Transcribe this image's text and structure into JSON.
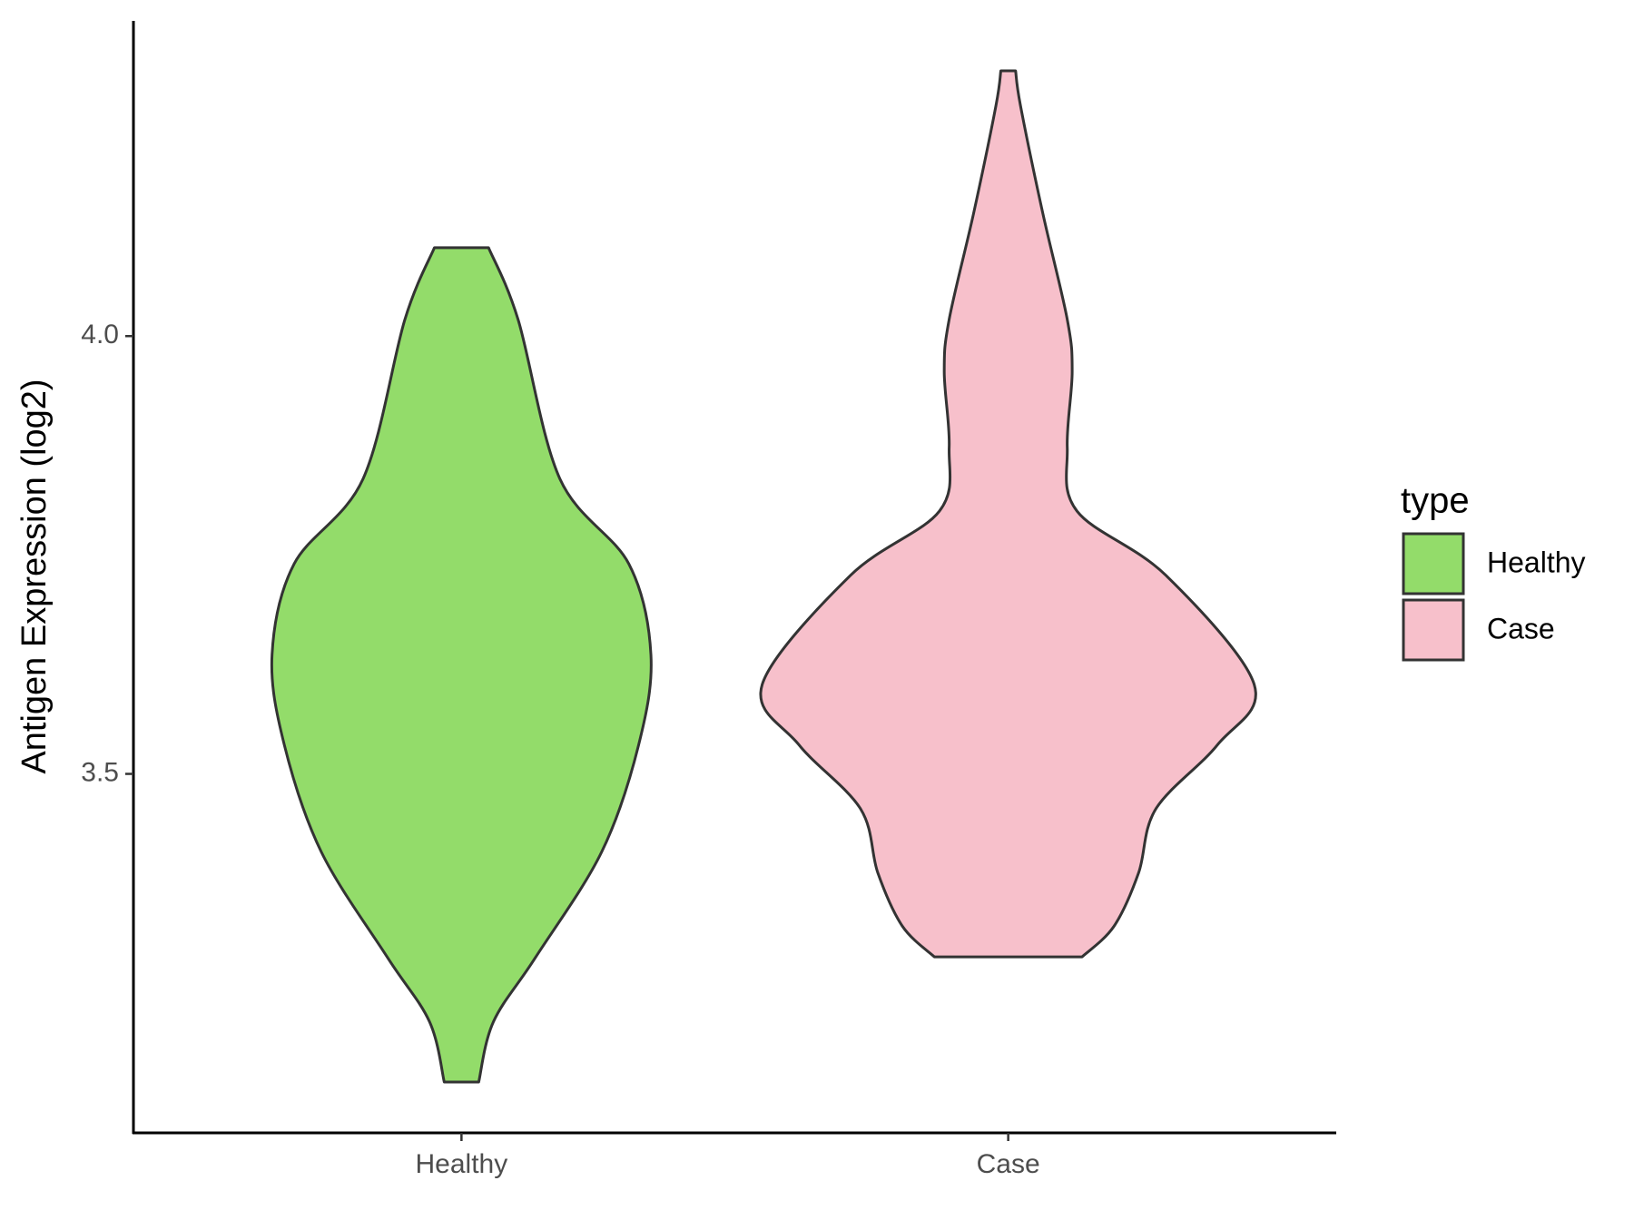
{
  "chart_data": {
    "type": "violin",
    "categories": [
      "Healthy",
      "Case"
    ],
    "y_label": "Antigen Expression (log2)",
    "ylim": [
      3.09,
      4.36
    ],
    "yticks": [
      3.5,
      {
        "value": 4,
        "label": "4.0"
      }
    ],
    "legend_title": "type",
    "legend_position": "right",
    "series": [
      {
        "name": "Healthy",
        "color": "#93dc6a",
        "density": {
          "y": [
            4.101,
            4.019,
            3.837,
            3.74,
            3.636,
            3.533,
            3.411,
            3.29,
            3.217,
            3.148
          ],
          "width": [
            0.11,
            0.23,
            0.4,
            0.68,
            0.77,
            0.72,
            0.57,
            0.3,
            0.13,
            0.07
          ]
        }
      },
      {
        "name": "Case",
        "color": "#f7c0cb",
        "density": {
          "y": [
            4.303,
            4.263,
            4.141,
            4.019,
            3.959,
            3.873,
            3.8,
            3.727,
            3.602,
            3.533,
            3.46,
            3.387,
            3.326,
            3.291
          ],
          "width": [
            0.03,
            0.05,
            0.14,
            0.24,
            0.26,
            0.24,
            0.28,
            0.64,
            1,
            0.85,
            0.6,
            0.53,
            0.43,
            0.3
          ]
        }
      }
    ]
  }
}
